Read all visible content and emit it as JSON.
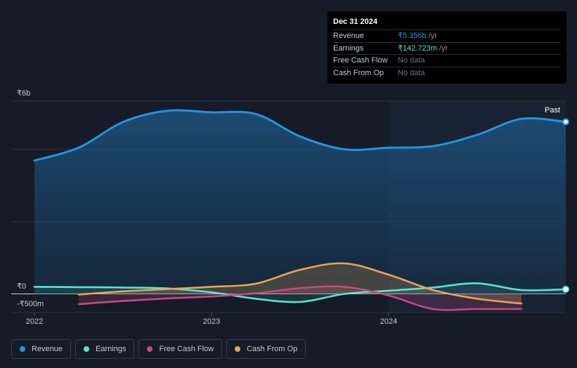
{
  "tooltip": {
    "date": "Dec 31 2024",
    "rows": [
      {
        "label": "Revenue",
        "value": "₹5.356b",
        "unit": "/yr",
        "color": "#2394df"
      },
      {
        "label": "Earnings",
        "value": "₹142.723m",
        "unit": "/yr",
        "color": "#58e5cf"
      },
      {
        "label": "Free Cash Flow",
        "value": "No data",
        "unit": "",
        "color": ""
      },
      {
        "label": "Cash From Op",
        "value": "No data",
        "unit": "",
        "color": ""
      }
    ]
  },
  "past_label": "Past",
  "legend": [
    {
      "label": "Revenue",
      "color": "#2394df"
    },
    {
      "label": "Earnings",
      "color": "#58e5cf"
    },
    {
      "label": "Free Cash Flow",
      "color": "#c44a85"
    },
    {
      "label": "Cash From Op",
      "color": "#e8a653"
    }
  ],
  "chart_data": {
    "type": "area",
    "y_unit": "₹",
    "ylim": [
      -0.5,
      6
    ],
    "y_ticks": [
      {
        "value": 6,
        "label": "₹6b"
      },
      {
        "value": 0,
        "label": "₹0"
      },
      {
        "value": -0.5,
        "label": "-₹500m"
      }
    ],
    "x_ticks": [
      {
        "value": 2022,
        "label": "2022"
      },
      {
        "value": 2023,
        "label": "2023"
      },
      {
        "value": 2024,
        "label": "2024"
      }
    ],
    "xlim": [
      2021.89,
      2025.0
    ],
    "past_start": 2024.0,
    "grid": true,
    "series": [
      {
        "name": "Revenue",
        "color": "#2394df",
        "fill": true,
        "x": [
          2022.0,
          2022.25,
          2022.5,
          2022.75,
          2023.0,
          2023.25,
          2023.5,
          2023.75,
          2024.0,
          2024.25,
          2024.5,
          2024.75,
          2025.0
        ],
        "y": [
          4.15,
          4.55,
          5.35,
          5.7,
          5.65,
          5.6,
          4.9,
          4.5,
          4.55,
          4.6,
          4.95,
          5.45,
          5.356
        ]
      },
      {
        "name": "Earnings",
        "color": "#58e5cf",
        "fill": false,
        "x": [
          2022.0,
          2022.25,
          2022.5,
          2022.75,
          2023.0,
          2023.25,
          2023.5,
          2023.75,
          2024.0,
          2024.25,
          2024.5,
          2024.75,
          2025.0
        ],
        "y": [
          0.22,
          0.21,
          0.2,
          0.17,
          0.05,
          -0.15,
          -0.25,
          0.0,
          0.1,
          0.2,
          0.33,
          0.12,
          0.143
        ]
      },
      {
        "name": "Free Cash Flow",
        "color": "#c44a85",
        "fill": false,
        "x": [
          2022.25,
          2022.5,
          2022.75,
          2023.0,
          2023.25,
          2023.5,
          2023.75,
          2024.0,
          2024.25,
          2024.5,
          2024.75
        ],
        "y": [
          -0.32,
          -0.22,
          -0.14,
          -0.08,
          0.02,
          0.18,
          0.22,
          -0.05,
          -0.47,
          -0.47,
          -0.47
        ]
      },
      {
        "name": "Cash From Op",
        "color": "#e8a653",
        "fill": false,
        "x": [
          2022.25,
          2022.5,
          2022.75,
          2023.0,
          2023.25,
          2023.5,
          2023.75,
          2024.0,
          2024.25,
          2024.5,
          2024.75
        ],
        "y": [
          -0.02,
          0.08,
          0.15,
          0.22,
          0.32,
          0.75,
          0.95,
          0.6,
          0.12,
          -0.15,
          -0.3
        ]
      }
    ]
  }
}
